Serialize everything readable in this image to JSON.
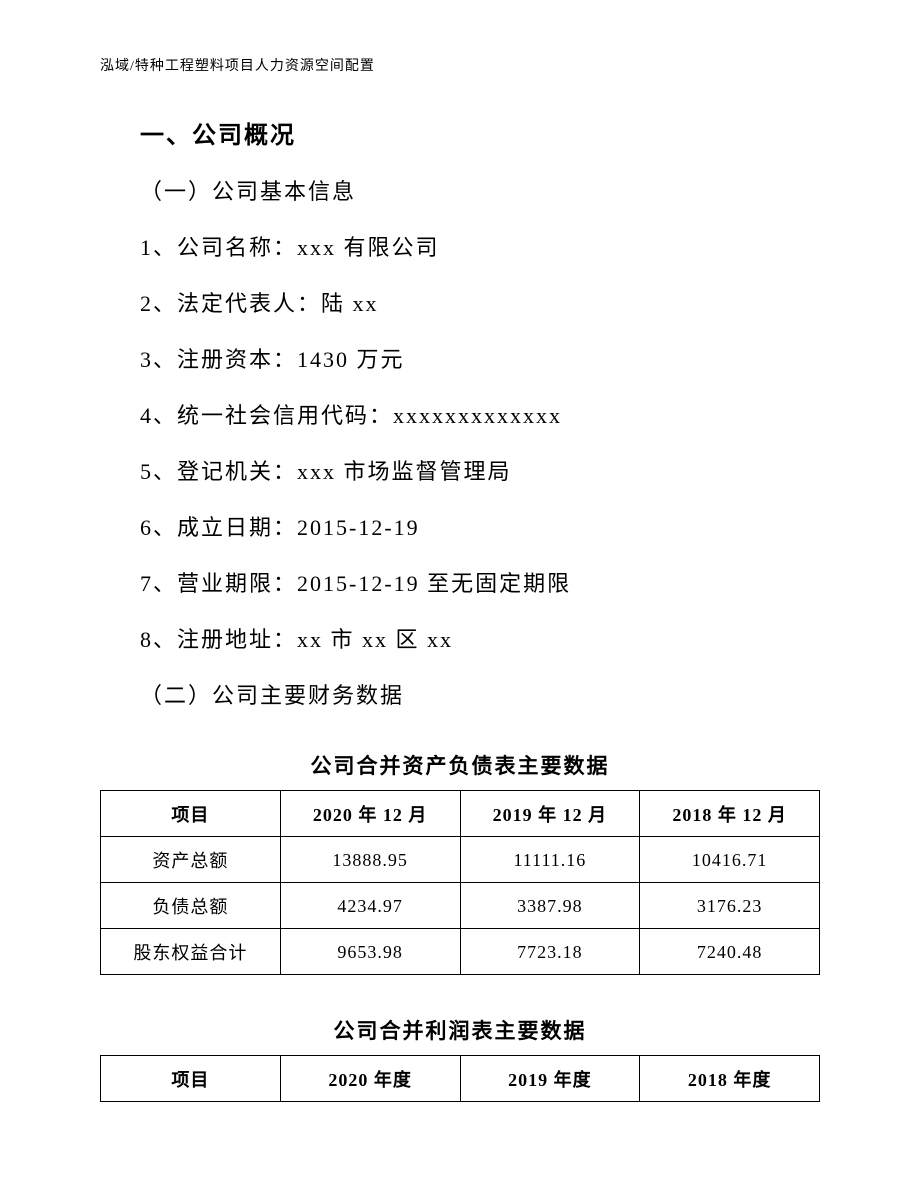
{
  "header": "泓域/特种工程塑料项目人力资源空间配置",
  "section_title": "一、公司概况",
  "subsection1": "（一）公司基本信息",
  "lines": [
    "1、公司名称：xxx 有限公司",
    "2、法定代表人：陆 xx",
    "3、注册资本：1430 万元",
    "4、统一社会信用代码：xxxxxxxxxxxxx",
    "5、登记机关：xxx 市场监督管理局",
    "6、成立日期：2015-12-19",
    "7、营业期限：2015-12-19 至无固定期限",
    "8、注册地址：xx 市 xx 区 xx"
  ],
  "subsection2": "（二）公司主要财务数据",
  "table1": {
    "title": "公司合并资产负债表主要数据",
    "columns": [
      "项目",
      "2020 年 12 月",
      "2019 年 12 月",
      "2018 年 12 月"
    ],
    "rows": [
      [
        "资产总额",
        "13888.95",
        "11111.16",
        "10416.71"
      ],
      [
        "负债总额",
        "4234.97",
        "3387.98",
        "3176.23"
      ],
      [
        "股东权益合计",
        "9653.98",
        "7723.18",
        "7240.48"
      ]
    ]
  },
  "table2": {
    "title": "公司合并利润表主要数据",
    "columns": [
      "项目",
      "2020 年度",
      "2019 年度",
      "2018 年度"
    ]
  },
  "style": {
    "background_color": "#ffffff",
    "text_color": "#000000",
    "border_color": "#000000",
    "header_fontsize": 14,
    "section_title_fontsize": 24,
    "body_fontsize": 22,
    "table_title_fontsize": 21,
    "table_fontsize": 18,
    "font_family": "SimSun"
  }
}
